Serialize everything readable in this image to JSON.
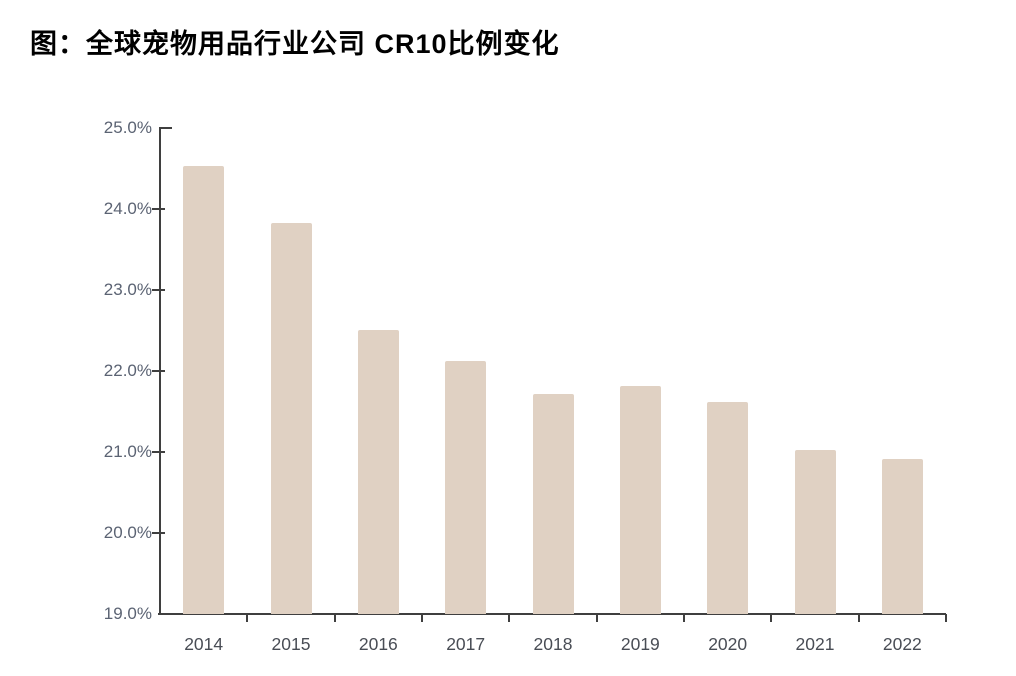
{
  "page": {
    "background": "#ffffff"
  },
  "chart_data": {
    "type": "bar",
    "title": "图：全球宠物用品行业公司 CR10比例变化",
    "categories": [
      "2014",
      "2015",
      "2016",
      "2017",
      "2018",
      "2019",
      "2020",
      "2021",
      "2022"
    ],
    "values": [
      24.53,
      23.83,
      22.51,
      22.12,
      21.71,
      21.81,
      21.62,
      21.02,
      20.91
    ],
    "unit": "%",
    "xlabel": "",
    "ylabel": "",
    "ylim": [
      19.0,
      25.0
    ],
    "ytick_step": 1.0,
    "ytick_labels": [
      "19.0%",
      "20.0%",
      "21.0%",
      "22.0%",
      "23.0%",
      "24.0%",
      "25.0%"
    ],
    "grid": false,
    "legend_position": "none",
    "bar_color": "#e0d1c3",
    "axis_color": "#3f3f3f",
    "ytick_label_color": "#5b6373",
    "xtick_label_color": "#494d55"
  }
}
